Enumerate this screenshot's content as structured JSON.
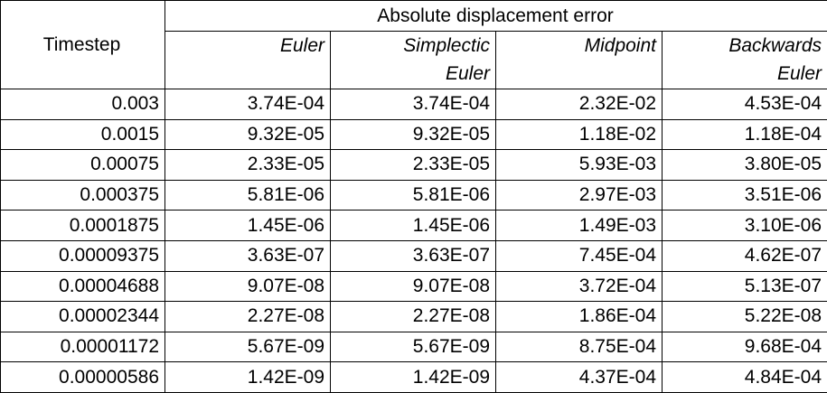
{
  "table": {
    "timestep_header": "Timestep",
    "group_header": "Absolute displacement error",
    "methods": [
      {
        "line1": "Euler",
        "line2": ""
      },
      {
        "line1": "Simplectic",
        "line2": "Euler"
      },
      {
        "line1": "Midpoint",
        "line2": ""
      },
      {
        "line1": "Backwards",
        "line2": "Euler"
      }
    ],
    "rows": [
      {
        "timestep": "0.003",
        "values": [
          "3.74E-04",
          "3.74E-04",
          "2.32E-02",
          "4.53E-04"
        ]
      },
      {
        "timestep": "0.0015",
        "values": [
          "9.32E-05",
          "9.32E-05",
          "1.18E-02",
          "1.18E-04"
        ]
      },
      {
        "timestep": "0.00075",
        "values": [
          "2.33E-05",
          "2.33E-05",
          "5.93E-03",
          "3.80E-05"
        ]
      },
      {
        "timestep": "0.000375",
        "values": [
          "5.81E-06",
          "5.81E-06",
          "2.97E-03",
          "3.51E-06"
        ]
      },
      {
        "timestep": "0.0001875",
        "values": [
          "1.45E-06",
          "1.45E-06",
          "1.49E-03",
          "3.10E-06"
        ]
      },
      {
        "timestep": "0.00009375",
        "values": [
          "3.63E-07",
          "3.63E-07",
          "7.45E-04",
          "4.62E-07"
        ]
      },
      {
        "timestep": "0.00004688",
        "values": [
          "9.07E-08",
          "9.07E-08",
          "3.72E-04",
          "5.13E-07"
        ]
      },
      {
        "timestep": "0.00002344",
        "values": [
          "2.27E-08",
          "2.27E-08",
          "1.86E-04",
          "5.22E-08"
        ]
      },
      {
        "timestep": "0.00001172",
        "values": [
          "5.67E-09",
          "5.67E-09",
          "8.75E-04",
          "9.68E-04"
        ]
      },
      {
        "timestep": "0.00000586",
        "values": [
          "1.42E-09",
          "1.42E-09",
          "4.37E-04",
          "4.84E-04"
        ]
      }
    ]
  }
}
